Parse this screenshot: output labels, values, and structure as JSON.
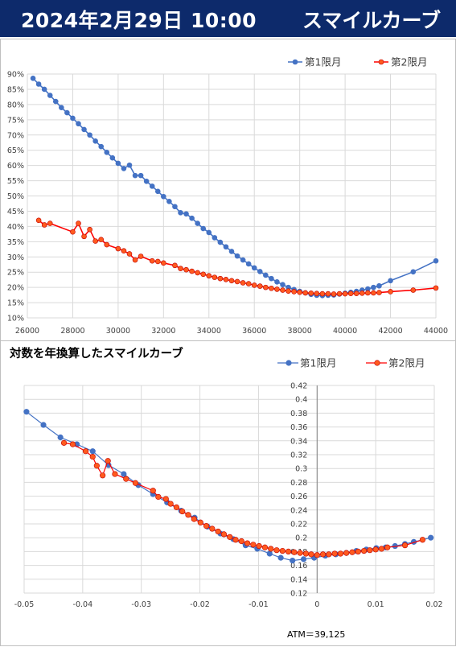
{
  "header": {
    "date": "2024年2月29日 10:00",
    "title": "スマイルカーブ"
  },
  "colors": {
    "series1": "#4472c4",
    "series2": "#ff0000",
    "series2_marker": "#ff5a1f",
    "header_bg": "#0d2a6b",
    "grid": "#d9d9d9"
  },
  "chart_data": [
    {
      "type": "line",
      "title": "",
      "xlim": [
        26000,
        44000
      ],
      "ylim": [
        0.1,
        0.9
      ],
      "x_ticks": [
        "26000",
        "28000",
        "30000",
        "32000",
        "34000",
        "36000",
        "38000",
        "40000",
        "42000",
        "44000"
      ],
      "y_ticks": [
        "10%",
        "15%",
        "20%",
        "25%",
        "30%",
        "35%",
        "40%",
        "45%",
        "50%",
        "55%",
        "60%",
        "65%",
        "70%",
        "75%",
        "80%",
        "85%",
        "90%"
      ],
      "legend": [
        "第1限月",
        "第2限月"
      ],
      "legend_position": "top-right",
      "series": [
        {
          "name": "第1限月",
          "x": [
            26250,
            26500,
            26750,
            27000,
            27250,
            27500,
            27750,
            28000,
            28250,
            28500,
            28750,
            29000,
            29250,
            29500,
            29750,
            30000,
            30250,
            30500,
            30750,
            31000,
            31250,
            31500,
            31750,
            32000,
            32250,
            32500,
            32750,
            33000,
            33250,
            33500,
            33750,
            34000,
            34250,
            34500,
            34750,
            35000,
            35250,
            35500,
            35750,
            36000,
            36250,
            36500,
            36750,
            37000,
            37250,
            37500,
            37750,
            38000,
            38250,
            38500,
            38750,
            39000,
            39250,
            39500,
            39750,
            40000,
            40250,
            40500,
            40750,
            41000,
            41250,
            41500,
            42000,
            43000,
            44000
          ],
          "y": [
            0.886,
            0.867,
            0.85,
            0.83,
            0.81,
            0.79,
            0.773,
            0.755,
            0.737,
            0.718,
            0.7,
            0.68,
            0.662,
            0.643,
            0.625,
            0.607,
            0.59,
            0.601,
            0.567,
            0.567,
            0.548,
            0.532,
            0.515,
            0.498,
            0.482,
            0.465,
            0.445,
            0.441,
            0.427,
            0.41,
            0.393,
            0.38,
            0.363,
            0.348,
            0.333,
            0.318,
            0.303,
            0.29,
            0.277,
            0.264,
            0.252,
            0.24,
            0.229,
            0.218,
            0.209,
            0.2,
            0.193,
            0.187,
            0.182,
            0.177,
            0.174,
            0.173,
            0.174,
            0.175,
            0.178,
            0.181,
            0.184,
            0.187,
            0.191,
            0.195,
            0.2,
            0.205,
            0.222,
            0.251,
            0.287
          ]
        },
        {
          "name": "第2限月",
          "x": [
            26500,
            26750,
            27000,
            28000,
            28250,
            28500,
            28750,
            29000,
            29250,
            29500,
            30000,
            30250,
            30500,
            30750,
            31000,
            31500,
            31750,
            32000,
            32500,
            32750,
            33000,
            33250,
            33500,
            33750,
            34000,
            34250,
            34500,
            34750,
            35000,
            35250,
            35500,
            35750,
            36000,
            36250,
            36500,
            36750,
            37000,
            37250,
            37500,
            37750,
            38000,
            38250,
            38500,
            38750,
            39000,
            39250,
            39500,
            39750,
            40000,
            40250,
            40500,
            40750,
            41000,
            41250,
            41500,
            42000,
            43000,
            44000
          ],
          "y": [
            0.42,
            0.405,
            0.41,
            0.382,
            0.41,
            0.367,
            0.39,
            0.352,
            0.357,
            0.34,
            0.327,
            0.32,
            0.31,
            0.29,
            0.302,
            0.287,
            0.285,
            0.28,
            0.272,
            0.262,
            0.258,
            0.253,
            0.248,
            0.243,
            0.238,
            0.233,
            0.229,
            0.226,
            0.222,
            0.219,
            0.215,
            0.212,
            0.207,
            0.204,
            0.2,
            0.197,
            0.194,
            0.191,
            0.188,
            0.186,
            0.184,
            0.182,
            0.181,
            0.18,
            0.179,
            0.179,
            0.178,
            0.179,
            0.179,
            0.18,
            0.18,
            0.181,
            0.182,
            0.182,
            0.183,
            0.186,
            0.191,
            0.198
          ]
        }
      ]
    },
    {
      "type": "scatter",
      "title": "対数を年換算したスマイルカーブ",
      "xlim": [
        -0.05,
        0.02
      ],
      "ylim": [
        0.12,
        0.42
      ],
      "x_ticks": [
        "-0.05",
        "-0.04",
        "-0.03",
        "-0.02",
        "-0.01",
        "0",
        "0.01",
        "0.02"
      ],
      "y_ticks": [
        "0.12",
        "0.14",
        "0.16",
        "0.18",
        "0.2",
        "0.22",
        "0.24",
        "0.26",
        "0.28",
        "0.3",
        "0.32",
        "0.34",
        "0.36",
        "0.38",
        "0.4",
        "0.42"
      ],
      "legend": [
        "第1限月",
        "第2限月"
      ],
      "legend_position": "top-right",
      "annotation": "ATM＝39,125",
      "series": [
        {
          "name": "第1限月",
          "x": [
            -0.0496,
            -0.0467,
            -0.0438,
            -0.041,
            -0.0383,
            -0.0356,
            -0.033,
            -0.0305,
            -0.028,
            -0.0256,
            -0.0232,
            -0.0209,
            -0.0187,
            -0.0165,
            -0.0143,
            -0.0122,
            -0.0102,
            -0.0081,
            -0.0062,
            -0.0042,
            -0.0023,
            -0.0005,
            0.0014,
            0.0032,
            0.005,
            0.0067,
            0.0084,
            0.0101,
            0.0117,
            0.0133,
            0.015,
            0.0165,
            0.0194
          ],
          "y": [
            0.382,
            0.363,
            0.345,
            0.335,
            0.325,
            0.305,
            0.292,
            0.276,
            0.263,
            0.251,
            0.239,
            0.229,
            0.216,
            0.206,
            0.198,
            0.189,
            0.184,
            0.177,
            0.171,
            0.167,
            0.169,
            0.171,
            0.174,
            0.176,
            0.178,
            0.181,
            0.183,
            0.185,
            0.186,
            0.188,
            0.191,
            0.194,
            0.2
          ]
        },
        {
          "name": "第2限月",
          "x": [
            -0.0432,
            -0.0417,
            -0.0395,
            -0.0383,
            -0.0376,
            -0.0366,
            -0.0357,
            -0.0345,
            -0.0326,
            -0.031,
            -0.028,
            -0.0271,
            -0.0258,
            -0.025,
            -0.024,
            -0.023,
            -0.022,
            -0.021,
            -0.0199,
            -0.0189,
            -0.0179,
            -0.0169,
            -0.0159,
            -0.0149,
            -0.0139,
            -0.0129,
            -0.0119,
            -0.0109,
            -0.0099,
            -0.0089,
            -0.0079,
            -0.0069,
            -0.0059,
            -0.0049,
            -0.0039,
            -0.0029,
            -0.0019,
            -0.001,
            0.0,
            0.001,
            0.002,
            0.003,
            0.004,
            0.005,
            0.006,
            0.007,
            0.008,
            0.009,
            0.01,
            0.011,
            0.012,
            0.015,
            0.018
          ],
          "y": [
            0.337,
            0.335,
            0.325,
            0.317,
            0.304,
            0.29,
            0.311,
            0.292,
            0.285,
            0.279,
            0.268,
            0.259,
            0.256,
            0.249,
            0.244,
            0.238,
            0.233,
            0.227,
            0.222,
            0.217,
            0.213,
            0.209,
            0.205,
            0.201,
            0.197,
            0.195,
            0.192,
            0.19,
            0.188,
            0.186,
            0.184,
            0.182,
            0.181,
            0.18,
            0.179,
            0.178,
            0.177,
            0.176,
            0.175,
            0.176,
            0.176,
            0.177,
            0.177,
            0.178,
            0.179,
            0.18,
            0.181,
            0.182,
            0.183,
            0.184,
            0.186,
            0.189,
            0.197
          ]
        }
      ]
    }
  ]
}
